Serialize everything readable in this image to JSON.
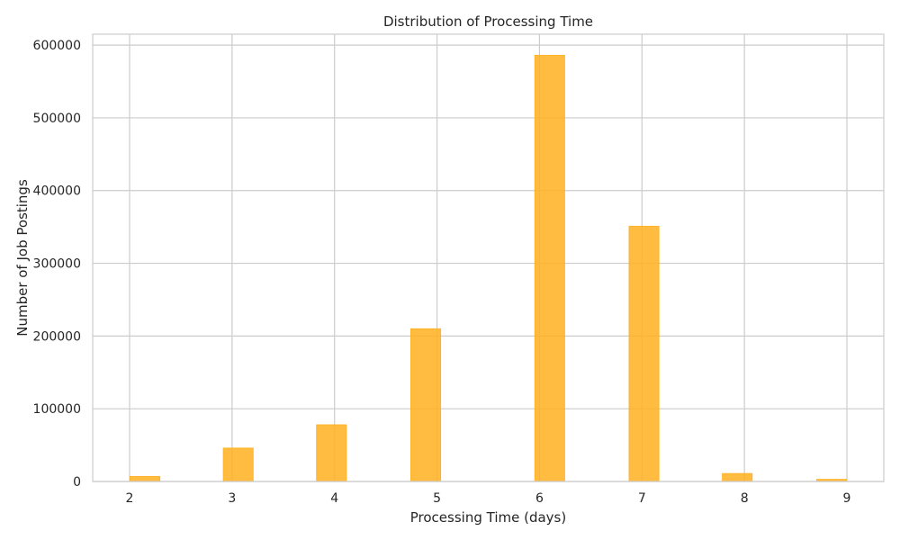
{
  "chart_data": {
    "type": "bar",
    "title": "Distribution of Processing Time",
    "xlabel": "Processing Time (days)",
    "ylabel": "Number of Job Postings",
    "xlim": [
      1.64,
      9.36
    ],
    "ylim": [
      0,
      615000
    ],
    "xticks": [
      2,
      3,
      4,
      5,
      6,
      7,
      8,
      9
    ],
    "yticks": [
      0,
      100000,
      200000,
      300000,
      400000,
      500000,
      600000
    ],
    "bin_width": 0.2917,
    "bins": [
      {
        "x": 2.15,
        "value": 7000
      },
      {
        "x": 3.06,
        "value": 46000
      },
      {
        "x": 3.97,
        "value": 78000
      },
      {
        "x": 4.89,
        "value": 210000
      },
      {
        "x": 6.1,
        "value": 586000
      },
      {
        "x": 7.02,
        "value": 351000
      },
      {
        "x": 7.93,
        "value": 11000
      },
      {
        "x": 8.85,
        "value": 3000
      }
    ],
    "bar_color": "#FFB01F",
    "grid": true,
    "legend": "none"
  }
}
